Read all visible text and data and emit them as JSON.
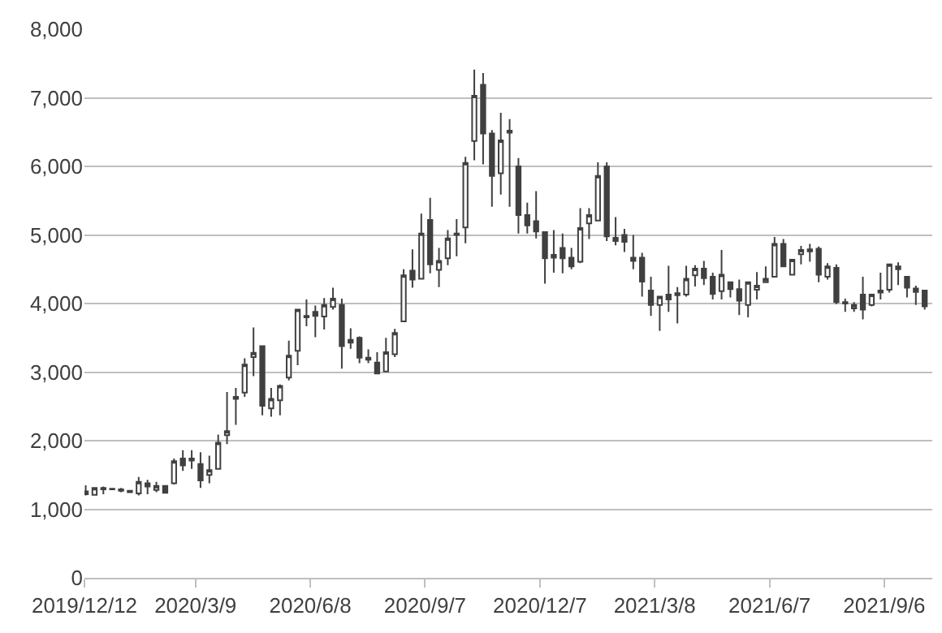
{
  "chart_data": {
    "type": "candlestick",
    "color": "#404040",
    "x": [
      "2019-12-13",
      "2019-12-20",
      "2019-12-27",
      "2020-01-03",
      "2020-01-10",
      "2020-01-17",
      "2020-01-24",
      "2020-01-31",
      "2020-02-07",
      "2020-02-14",
      "2020-02-21",
      "2020-02-28",
      "2020-03-06",
      "2020-03-13",
      "2020-03-20",
      "2020-03-27",
      "2020-04-03",
      "2020-04-10",
      "2020-04-17",
      "2020-04-24",
      "2020-05-01",
      "2020-05-08",
      "2020-05-15",
      "2020-05-22",
      "2020-05-29",
      "2020-06-05",
      "2020-06-12",
      "2020-06-19",
      "2020-06-26",
      "2020-07-03",
      "2020-07-10",
      "2020-07-17",
      "2020-07-24",
      "2020-07-31",
      "2020-08-07",
      "2020-08-14",
      "2020-08-21",
      "2020-08-28",
      "2020-09-04",
      "2020-09-11",
      "2020-09-18",
      "2020-09-25",
      "2020-10-02",
      "2020-10-09",
      "2020-10-16",
      "2020-10-23",
      "2020-10-30",
      "2020-11-06",
      "2020-11-13",
      "2020-11-20",
      "2020-11-27",
      "2020-12-04",
      "2020-12-11",
      "2020-12-18",
      "2020-12-25",
      "2021-01-01",
      "2021-01-08",
      "2021-01-15",
      "2021-01-22",
      "2021-01-29",
      "2021-02-05",
      "2021-02-12",
      "2021-02-19",
      "2021-02-26",
      "2021-03-05",
      "2021-03-12",
      "2021-03-19",
      "2021-03-26",
      "2021-04-02",
      "2021-04-09",
      "2021-04-16",
      "2021-04-23",
      "2021-04-30",
      "2021-05-07",
      "2021-05-14",
      "2021-05-21",
      "2021-05-28",
      "2021-06-04",
      "2021-06-11",
      "2021-06-18",
      "2021-06-25",
      "2021-07-02",
      "2021-07-09",
      "2021-07-16",
      "2021-07-23",
      "2021-07-30",
      "2021-08-06",
      "2021-08-13",
      "2021-08-20",
      "2021-08-27",
      "2021-09-03",
      "2021-09-10",
      "2021-09-17",
      "2021-09-24",
      "2021-10-01",
      "2021-10-08"
    ],
    "ohlc": [
      [
        1260,
        1350,
        1200,
        1220
      ],
      [
        1210,
        1320,
        1200,
        1310
      ],
      [
        1310,
        1330,
        1220,
        1290
      ],
      [
        1300,
        1310,
        1290,
        1290
      ],
      [
        1290,
        1310,
        1250,
        1270
      ],
      [
        1270,
        1280,
        1240,
        1250
      ],
      [
        1230,
        1470,
        1200,
        1400
      ],
      [
        1380,
        1430,
        1220,
        1330
      ],
      [
        1280,
        1400,
        1250,
        1340
      ],
      [
        1340,
        1340,
        1230,
        1240
      ],
      [
        1380,
        1740,
        1360,
        1700
      ],
      [
        1740,
        1860,
        1560,
        1640
      ],
      [
        1740,
        1860,
        1590,
        1710
      ],
      [
        1660,
        1830,
        1310,
        1420
      ],
      [
        1500,
        1780,
        1380,
        1570
      ],
      [
        1590,
        2090,
        1580,
        1970
      ],
      [
        2080,
        2710,
        1950,
        2140
      ],
      [
        2640,
        2770,
        2230,
        2610
      ],
      [
        2700,
        3200,
        2640,
        3110
      ],
      [
        3220,
        3650,
        2940,
        3280
      ],
      [
        3380,
        3380,
        2370,
        2510
      ],
      [
        2470,
        2770,
        2350,
        2610
      ],
      [
        2590,
        2820,
        2370,
        2800
      ],
      [
        2920,
        3460,
        2880,
        3240
      ],
      [
        3310,
        3910,
        3100,
        3910
      ],
      [
        3820,
        4060,
        3670,
        3800
      ],
      [
        3880,
        3970,
        3510,
        3820
      ],
      [
        3810,
        4080,
        3620,
        3980
      ],
      [
        3950,
        4230,
        3910,
        4070
      ],
      [
        3980,
        4070,
        3050,
        3380
      ],
      [
        3470,
        3640,
        3340,
        3430
      ],
      [
        3500,
        3520,
        3130,
        3210
      ],
      [
        3210,
        3330,
        3130,
        3180
      ],
      [
        3140,
        3290,
        2980,
        2980
      ],
      [
        3010,
        3500,
        3010,
        3290
      ],
      [
        3260,
        3630,
        3220,
        3570
      ],
      [
        3740,
        4500,
        3740,
        4410
      ],
      [
        4480,
        4790,
        4230,
        4350
      ],
      [
        4360,
        5310,
        4360,
        5020
      ],
      [
        5220,
        5540,
        4440,
        4570
      ],
      [
        4490,
        4810,
        4240,
        4620
      ],
      [
        4660,
        5070,
        4560,
        4950
      ],
      [
        5020,
        5230,
        4690,
        5000
      ],
      [
        5110,
        6140,
        4880,
        6050
      ],
      [
        6370,
        7410,
        6090,
        7030
      ],
      [
        7190,
        7360,
        6030,
        6480
      ],
      [
        6480,
        6530,
        5410,
        5860
      ],
      [
        5900,
        6780,
        5590,
        6380
      ],
      [
        6520,
        6690,
        5410,
        6490
      ],
      [
        6000,
        6120,
        5020,
        5290
      ],
      [
        5290,
        5470,
        5020,
        5140
      ],
      [
        5200,
        5640,
        4950,
        5050
      ],
      [
        5040,
        5040,
        4290,
        4660
      ],
      [
        4670,
        5070,
        4450,
        4710
      ],
      [
        4810,
        5020,
        4440,
        4660
      ],
      [
        4670,
        4810,
        4500,
        4540
      ],
      [
        4610,
        5390,
        4590,
        5100
      ],
      [
        5170,
        5390,
        4940,
        5290
      ],
      [
        5210,
        6060,
        5210,
        5860
      ],
      [
        6000,
        6060,
        4910,
        4980
      ],
      [
        4910,
        5260,
        4850,
        4960
      ],
      [
        5000,
        5090,
        4750,
        4900
      ],
      [
        4620,
        5000,
        4500,
        4670
      ],
      [
        4670,
        4740,
        4100,
        4320
      ],
      [
        4190,
        4390,
        3820,
        3980
      ],
      [
        3980,
        4100,
        3600,
        4100
      ],
      [
        4130,
        4550,
        3880,
        4060
      ],
      [
        4150,
        4240,
        3710,
        4120
      ],
      [
        4130,
        4550,
        4100,
        4360
      ],
      [
        4410,
        4560,
        4250,
        4510
      ],
      [
        4510,
        4620,
        4270,
        4370
      ],
      [
        4390,
        4450,
        4060,
        4140
      ],
      [
        4180,
        4780,
        4060,
        4420
      ],
      [
        4310,
        4310,
        4090,
        4210
      ],
      [
        4210,
        4350,
        3830,
        4040
      ],
      [
        3980,
        4310,
        3800,
        4310
      ],
      [
        4200,
        4460,
        4060,
        4260
      ],
      [
        4310,
        4540,
        4310,
        4360
      ],
      [
        4390,
        4970,
        4390,
        4870
      ],
      [
        4870,
        4940,
        4530,
        4540
      ],
      [
        4420,
        4650,
        4410,
        4640
      ],
      [
        4720,
        4840,
        4570,
        4780
      ],
      [
        4790,
        4870,
        4610,
        4760
      ],
      [
        4800,
        4830,
        4310,
        4420
      ],
      [
        4390,
        4590,
        4350,
        4540
      ],
      [
        4520,
        4570,
        3990,
        4020
      ],
      [
        4020,
        4070,
        3880,
        4000
      ],
      [
        3930,
        4020,
        3880,
        3980
      ],
      [
        4130,
        4390,
        3770,
        3910
      ],
      [
        3980,
        4130,
        3960,
        4130
      ],
      [
        4190,
        4450,
        4060,
        4160
      ],
      [
        4200,
        4570,
        4160,
        4570
      ],
      [
        4500,
        4600,
        4270,
        4540
      ],
      [
        4390,
        4390,
        4090,
        4230
      ],
      [
        4220,
        4260,
        3980,
        4170
      ],
      [
        4190,
        4190,
        3910,
        3960
      ]
    ],
    "xlim": [
      "2019-12-12",
      "2021-10-14"
    ],
    "xticks": [
      {
        "value": "2019-12-12",
        "label": "2019/12/12"
      },
      {
        "value": "2020-03-09",
        "label": "2020/3/9"
      },
      {
        "value": "2020-06-08",
        "label": "2020/6/8"
      },
      {
        "value": "2020-09-07",
        "label": "2020/9/7"
      },
      {
        "value": "2020-12-07",
        "label": "2020/12/7"
      },
      {
        "value": "2021-03-08",
        "label": "2021/3/8"
      },
      {
        "value": "2021-06-07",
        "label": "2021/6/7"
      },
      {
        "value": "2021-09-06",
        "label": "2021/9/6"
      }
    ],
    "ylim": [
      0,
      8000
    ],
    "yticks": [
      0,
      {
        "value": 1000,
        "label": "1,000"
      },
      {
        "value": 2000,
        "label": "2,000"
      },
      {
        "value": 3000,
        "label": "3,000"
      },
      {
        "value": 4000,
        "label": "4,000"
      },
      {
        "value": 5000,
        "label": "5,000"
      },
      {
        "value": 6000,
        "label": "6,000"
      },
      {
        "value": 7000,
        "label": "7,000"
      },
      {
        "value": 8000,
        "label": "8,000"
      }
    ],
    "grid": "y"
  }
}
